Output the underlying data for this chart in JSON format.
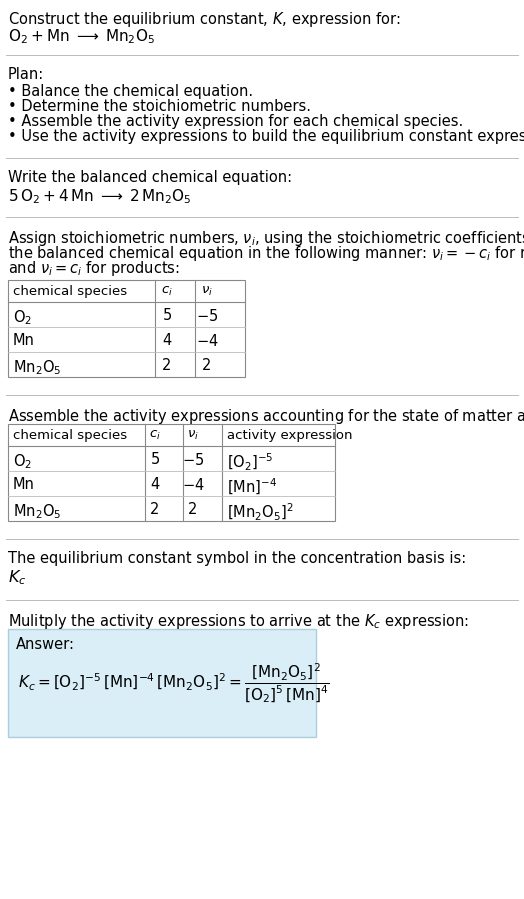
{
  "title_line1": "Construct the equilibrium constant, $K$, expression for:",
  "title_line2": "$\\mathrm{O_2 + Mn \\;\\longrightarrow\\; Mn_2O_5}$",
  "plan_header": "Plan:",
  "plan_bullets": [
    "• Balance the chemical equation.",
    "• Determine the stoichiometric numbers.",
    "• Assemble the activity expression for each chemical species.",
    "• Use the activity expressions to build the equilibrium constant expression."
  ],
  "balanced_header": "Write the balanced chemical equation:",
  "balanced_eq": "$\\mathrm{5\\,O_2 + 4\\,Mn \\;\\longrightarrow\\; 2\\,Mn_2O_5}$",
  "stoich_lines": [
    "Assign stoichiometric numbers, $\\nu_i$, using the stoichiometric coefficients, $c_i$, from",
    "the balanced chemical equation in the following manner: $\\nu_i = -c_i$ for reactants",
    "and $\\nu_i = c_i$ for products:"
  ],
  "table1_headers": [
    "chemical species",
    "$c_i$",
    "$\\nu_i$"
  ],
  "table1_rows": [
    [
      "$\\mathrm{O_2}$",
      "5",
      "$-5$"
    ],
    [
      "Mn",
      "4",
      "$-4$"
    ],
    [
      "$\\mathrm{Mn_2O_5}$",
      "2",
      "2"
    ]
  ],
  "activity_header": "Assemble the activity expressions accounting for the state of matter and $\\nu_i$:",
  "table2_headers": [
    "chemical species",
    "$c_i$",
    "$\\nu_i$",
    "activity expression"
  ],
  "table2_rows": [
    [
      "$\\mathrm{O_2}$",
      "5",
      "$-5$",
      "$[\\mathrm{O_2}]^{-5}$"
    ],
    [
      "Mn",
      "4",
      "$-4$",
      "$[\\mathrm{Mn}]^{-4}$"
    ],
    [
      "$\\mathrm{Mn_2O_5}$",
      "2",
      "2",
      "$[\\mathrm{Mn_2O_5}]^2$"
    ]
  ],
  "kc_header": "The equilibrium constant symbol in the concentration basis is:",
  "kc_symbol": "$K_c$",
  "multiply_header": "Mulitply the activity expressions to arrive at the $K_c$ expression:",
  "answer_label": "Answer:",
  "answer_eq": "$K_c = [\\mathrm{O_2}]^{-5}\\,[\\mathrm{Mn}]^{-4}\\,[\\mathrm{Mn_2O_5}]^2 = \\dfrac{[\\mathrm{Mn_2O_5}]^2}{[\\mathrm{O_2}]^5\\,[\\mathrm{Mn}]^4}$",
  "bg_color": "#ffffff",
  "answer_bg": "#daeef7",
  "answer_border": "#aacfdf",
  "sep_color": "#bbbbbb",
  "text_color": "#000000",
  "fs": 10.5
}
